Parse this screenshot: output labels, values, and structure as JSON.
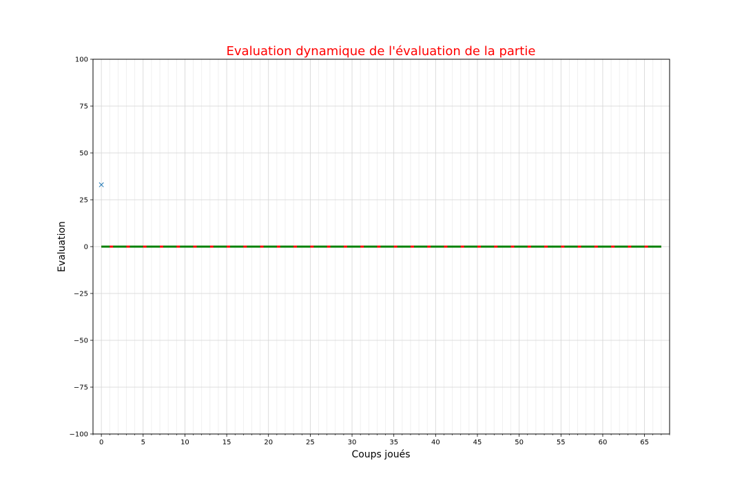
{
  "chart_data": {
    "type": "line",
    "title": "Evaluation dynamique de l'évaluation de la partie",
    "title_color": "#ff0000",
    "xlabel": "Coups joués",
    "ylabel": "Evaluation",
    "xlim": [
      -1,
      68
    ],
    "ylim": [
      -100,
      100
    ],
    "x_ticks": [
      0,
      5,
      10,
      15,
      20,
      25,
      30,
      35,
      40,
      45,
      50,
      55,
      60,
      65
    ],
    "x_tick_labels": [
      "0",
      "5",
      "10",
      "15",
      "20",
      "25",
      "30",
      "35",
      "40",
      "45",
      "50",
      "55",
      "60",
      "65"
    ],
    "x_minor_step": 1,
    "y_ticks": [
      -100,
      -75,
      -50,
      -25,
      0,
      25,
      50,
      75,
      100
    ],
    "y_tick_labels": [
      "−100",
      "−75",
      "−50",
      "−25",
      "0",
      "25",
      "50",
      "75",
      "100"
    ],
    "grid": true,
    "series": [
      {
        "marker": "x",
        "color": "#1f77b4",
        "x": [
          0
        ],
        "y": [
          33
        ]
      },
      {
        "style": "dashed",
        "color": "#ff0000",
        "x": [
          0,
          67
        ],
        "y": [
          0,
          0
        ]
      },
      {
        "style": "solid",
        "color": "#008000",
        "x": [
          0,
          67
        ],
        "y": [
          0,
          0
        ],
        "segments": [
          [
            0,
            1
          ],
          [
            1,
            3
          ],
          [
            3,
            5
          ],
          [
            5,
            7
          ],
          [
            7,
            9
          ],
          [
            9,
            11
          ],
          [
            11,
            13
          ],
          [
            13,
            15
          ],
          [
            15,
            17
          ],
          [
            17,
            19
          ],
          [
            19,
            21
          ],
          [
            21,
            23
          ],
          [
            23,
            25
          ],
          [
            25,
            27
          ],
          [
            27,
            29
          ],
          [
            29,
            31
          ],
          [
            31,
            33
          ],
          [
            33,
            35
          ],
          [
            35,
            37
          ],
          [
            37,
            39
          ],
          [
            39,
            41
          ],
          [
            41,
            43
          ],
          [
            43,
            45
          ],
          [
            45,
            47
          ],
          [
            47,
            49
          ],
          [
            49,
            51
          ],
          [
            51,
            53
          ],
          [
            53,
            55
          ],
          [
            55,
            57
          ],
          [
            57,
            59
          ],
          [
            59,
            61
          ],
          [
            61,
            63
          ],
          [
            63,
            65
          ],
          [
            65,
            67
          ]
        ]
      }
    ]
  }
}
